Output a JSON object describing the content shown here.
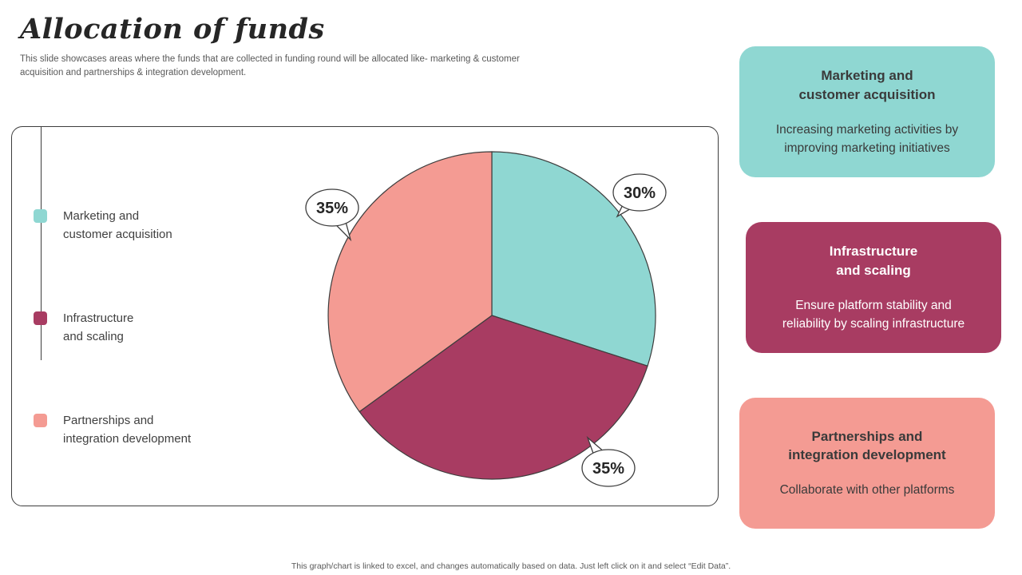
{
  "slide": {
    "title": "Allocation of funds",
    "subtitle": "This slide showcases areas where the funds that are collected in funding round will be allocated like- marketing & customer\nacquisition and partnerships & integration development.",
    "footer": "This graph/chart is linked to excel, and changes automatically based on data. Just left click on it and select “Edit Data”."
  },
  "chart_data": {
    "type": "pie",
    "title": "Allocation of funds",
    "categories": [
      "Marketing and customer acquisition",
      "Infrastructure and scaling",
      "Partnerships and integration development"
    ],
    "values": [
      30,
      35,
      35
    ],
    "labels": [
      "30%",
      "35%",
      "35%"
    ],
    "colors": [
      "#8FD7D2",
      "#A83C62",
      "#F49B93"
    ],
    "start_angle_deg": 0,
    "direction": "clockwise",
    "legend_position": "left",
    "outline_color": "#3d3d3d"
  },
  "legend": {
    "items": [
      {
        "label": "Marketing and\ncustomer acquisition",
        "color": "#8FD7D2"
      },
      {
        "label": "Infrastructure\nand scaling",
        "color": "#A83C62"
      },
      {
        "label": "Partnerships and\nintegration development",
        "color": "#F49B93"
      }
    ]
  },
  "cards": [
    {
      "title": "Marketing and\ncustomer acquisition",
      "body": "Increasing marketing activities by\nimproving marketing initiatives",
      "bg": "#8FD7D2",
      "text": "#3A3A3A"
    },
    {
      "title": "Infrastructure\nand scaling",
      "body": "Ensure platform stability and\nreliability by scaling infrastructure",
      "bg": "#A83C62",
      "text": "#FFFFFF"
    },
    {
      "title": "Partnerships and\nintegration development",
      "body": "Collaborate with other platforms",
      "bg": "#F49B93",
      "text": "#3A3A3A"
    }
  ]
}
